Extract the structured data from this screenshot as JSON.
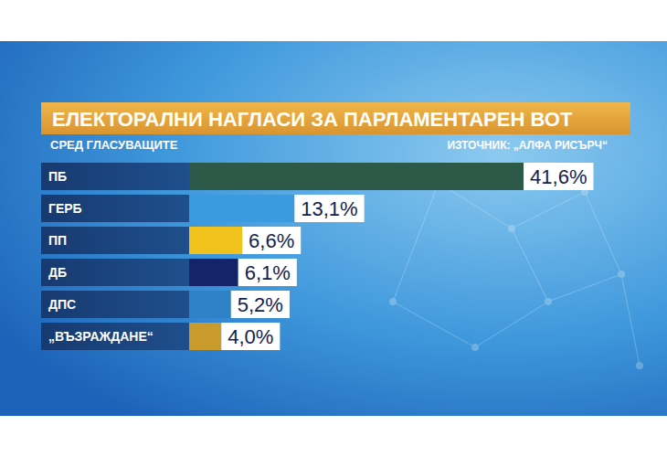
{
  "chart_data": {
    "type": "bar",
    "orientation": "horizontal",
    "title": "ЕЛЕКТОРАЛНИ НАГЛАСИ ЗА ПАРЛАМЕНТАРЕН ВОТ",
    "subtitle": "СРЕД ГЛАСУВАЩИТЕ",
    "annotations": [
      "ИЗТОЧНИК: „АЛФА РИСЪРЧ“"
    ],
    "categories": [
      "ПБ",
      "ГЕРБ",
      "ПП",
      "ДБ",
      "ДПС",
      "„ВЪЗРАЖДАНЕ“"
    ],
    "values": [
      41.6,
      13.1,
      6.6,
      6.1,
      5.2,
      4.0
    ],
    "value_labels": [
      "41,6%",
      "13,1%",
      "6,6%",
      "6,1%",
      "5,2%",
      "4,0%"
    ],
    "colors": [
      "#2d5a48",
      "#3b9be0",
      "#f2c21c",
      "#15246a",
      "#2f82c8",
      "#c99a2c"
    ],
    "xlim": [
      0,
      45
    ],
    "data_labels": true,
    "tick_labels": false,
    "grid": false
  }
}
